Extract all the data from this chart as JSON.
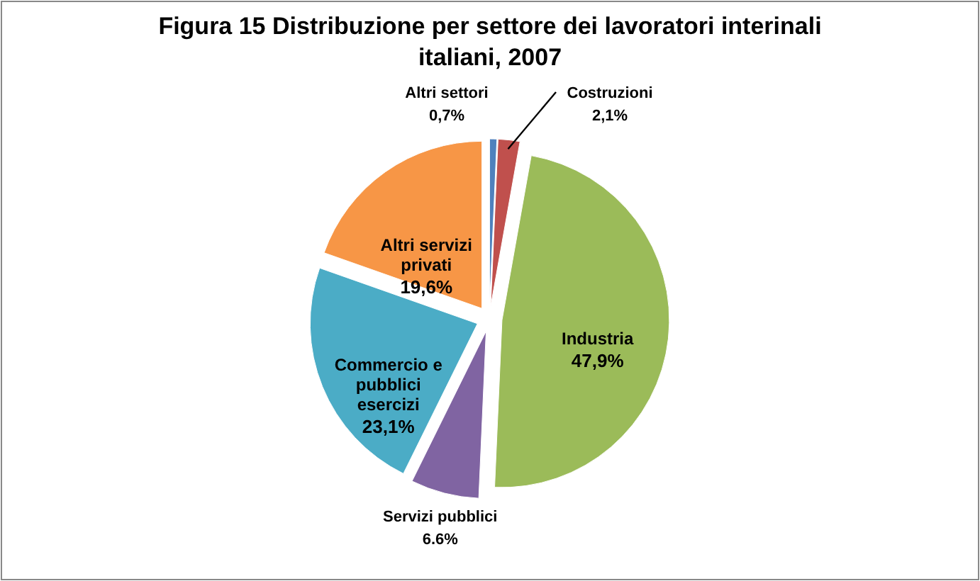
{
  "chart_data": {
    "type": "pie",
    "title": "Figura 15 Distribuzione per settore dei lavoratori interinali italiani, 2007",
    "categories": [
      "Altri settori",
      "Costruzioni",
      "Industria",
      "Servizi pubblici",
      "Commercio e pubblici esercizi",
      "Altri servizi privati"
    ],
    "values": [
      0.7,
      2.1,
      47.9,
      6.6,
      23.1,
      19.6
    ],
    "value_labels": [
      "0,7%",
      "2,1%",
      "47,9%",
      "6.6%",
      "23,1%",
      "19,6%"
    ],
    "colors": [
      "#4f81bd",
      "#c0504d",
      "#9bbb59",
      "#8064a2",
      "#4bacc6",
      "#f79646"
    ]
  }
}
